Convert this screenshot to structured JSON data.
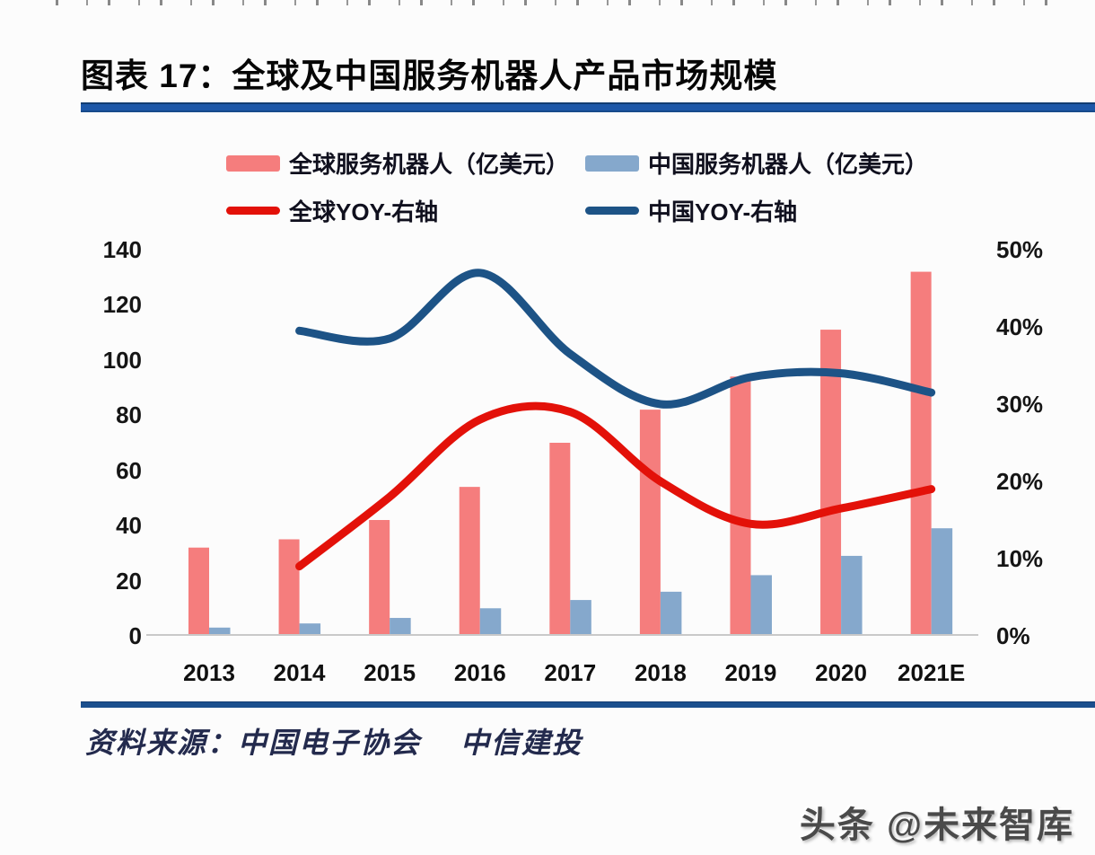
{
  "page": {
    "title": "图表 17：全球及中国服务机器人产品市场规模",
    "source": "资料来源：中国电子协会　 中信建投",
    "watermark": "头条 @未来智库"
  },
  "colors": {
    "global_bar": "#F57D7D",
    "china_bar": "#85A8CC",
    "global_line": "#E31109",
    "china_line": "#1D5386",
    "rule_blue": "#1D57A8",
    "axis_baseline": "#C9C9C9"
  },
  "legend": {
    "items": [
      {
        "label": "全球服务机器人（亿美元）",
        "type": "bar",
        "color_key": "global_bar"
      },
      {
        "label": "中国服务机器人（亿美元）",
        "type": "bar",
        "color_key": "china_bar"
      },
      {
        "label": "全球YOY-右轴",
        "type": "line",
        "color_key": "global_line"
      },
      {
        "label": "中国YOY-右轴",
        "type": "line",
        "color_key": "china_line"
      }
    ],
    "position": "top"
  },
  "chart_data": {
    "type": "bar",
    "subtype": "bar-line-combo",
    "title": "全球及中国服务机器人产品市场规模",
    "categories": [
      "2013",
      "2014",
      "2015",
      "2016",
      "2017",
      "2018",
      "2019",
      "2020",
      "2021E"
    ],
    "series": [
      {
        "name": "全球服务机器人（亿美元）",
        "type": "bar",
        "axis": "left",
        "values": [
          32,
          35,
          42,
          54,
          70,
          82,
          94,
          111,
          132
        ],
        "color_key": "global_bar"
      },
      {
        "name": "中国服务机器人（亿美元）",
        "type": "bar",
        "axis": "left",
        "values": [
          3,
          4.5,
          6.5,
          10,
          13,
          16,
          22,
          29,
          39
        ],
        "color_key": "china_bar"
      },
      {
        "name": "全球YOY-右轴",
        "type": "line",
        "axis": "right",
        "unit": "%",
        "values": [
          null,
          9,
          18,
          28,
          29,
          20,
          14.5,
          16.5,
          19
        ],
        "color_key": "global_line"
      },
      {
        "name": "中国YOY-右轴",
        "type": "line",
        "axis": "right",
        "unit": "%",
        "values": [
          null,
          39.5,
          38.5,
          47,
          36.5,
          30,
          33.5,
          34,
          31.5
        ],
        "color_key": "china_line"
      }
    ],
    "left_axis": {
      "ticks": [
        "0",
        "20",
        "40",
        "60",
        "80",
        "100",
        "120",
        "140"
      ],
      "tick_values": [
        0,
        20,
        40,
        60,
        80,
        100,
        120,
        140
      ],
      "min": 0,
      "max": 140
    },
    "right_axis": {
      "ticks": [
        "0%",
        "10%",
        "20%",
        "30%",
        "40%",
        "50%"
      ],
      "tick_values": [
        0,
        10,
        20,
        30,
        40,
        50
      ],
      "min": 0,
      "max": 50
    },
    "grid": false
  }
}
